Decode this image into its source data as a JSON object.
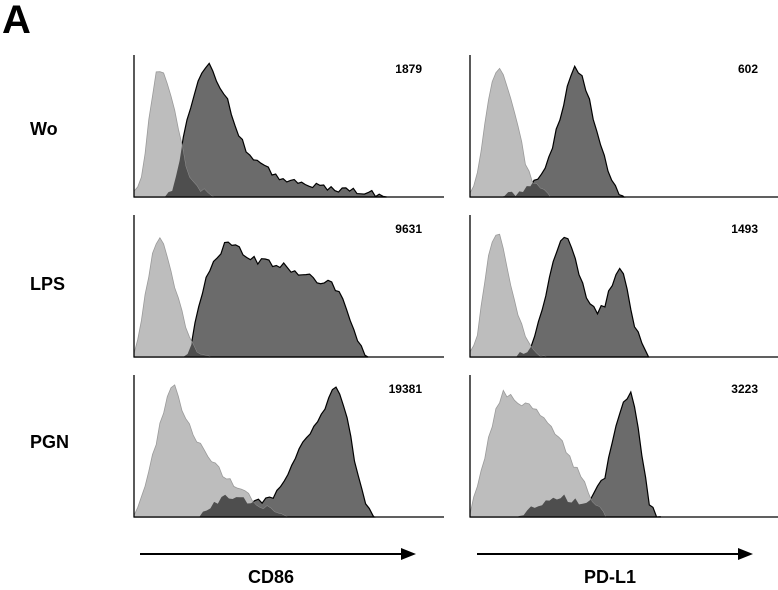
{
  "panel_letter": "A",
  "colors": {
    "control": "#bdbdbd",
    "treated": "#6b6b6b",
    "overlap": "#4e4e4e",
    "outline": "#000000"
  },
  "chart_data": {
    "type": "area",
    "description_free": true,
    "rows": [
      "Wo",
      "LPS",
      "PGN"
    ],
    "columns": [
      "CD86",
      "PD-L1"
    ],
    "grid": false,
    "panels": [
      {
        "row": "Wo",
        "column": "CD86",
        "mfi": "1879",
        "control": [
          [
            0,
            2
          ],
          [
            2,
            8
          ],
          [
            3,
            20
          ],
          [
            5,
            60
          ],
          [
            7,
            85
          ],
          [
            9,
            92
          ],
          [
            11,
            80
          ],
          [
            14,
            55
          ],
          [
            17,
            20
          ],
          [
            20,
            6
          ],
          [
            26,
            0
          ]
        ],
        "treated": [
          [
            10,
            0
          ],
          [
            13,
            8
          ],
          [
            16,
            40
          ],
          [
            19,
            70
          ],
          [
            22,
            88
          ],
          [
            24,
            94
          ],
          [
            27,
            82
          ],
          [
            30,
            70
          ],
          [
            33,
            50
          ],
          [
            36,
            35
          ],
          [
            40,
            24
          ],
          [
            46,
            15
          ],
          [
            55,
            9
          ],
          [
            65,
            6
          ],
          [
            75,
            3
          ],
          [
            82,
            0
          ]
        ]
      },
      {
        "row": "Wo",
        "column": "PD-L1",
        "mfi": "602",
        "control": [
          [
            0,
            2
          ],
          [
            2,
            10
          ],
          [
            4,
            40
          ],
          [
            6,
            70
          ],
          [
            8,
            88
          ],
          [
            10,
            94
          ],
          [
            12,
            80
          ],
          [
            15,
            55
          ],
          [
            18,
            25
          ],
          [
            21,
            8
          ],
          [
            26,
            0
          ]
        ],
        "treated": [
          [
            10,
            0
          ],
          [
            17,
            4
          ],
          [
            22,
            12
          ],
          [
            26,
            30
          ],
          [
            29,
            55
          ],
          [
            32,
            80
          ],
          [
            34,
            92
          ],
          [
            36,
            88
          ],
          [
            39,
            65
          ],
          [
            42,
            40
          ],
          [
            45,
            18
          ],
          [
            48,
            4
          ],
          [
            50,
            0
          ]
        ]
      },
      {
        "row": "LPS",
        "column": "CD86",
        "mfi": "9631",
        "control": [
          [
            0,
            2
          ],
          [
            2,
            20
          ],
          [
            4,
            50
          ],
          [
            6,
            72
          ],
          [
            8,
            85
          ],
          [
            10,
            80
          ],
          [
            12,
            58
          ],
          [
            15,
            35
          ],
          [
            18,
            14
          ],
          [
            20,
            4
          ],
          [
            25,
            0
          ]
        ],
        "treated": [
          [
            15,
            0
          ],
          [
            18,
            5
          ],
          [
            21,
            35
          ],
          [
            24,
            60
          ],
          [
            27,
            68
          ],
          [
            30,
            82
          ],
          [
            33,
            80
          ],
          [
            36,
            72
          ],
          [
            40,
            68
          ],
          [
            45,
            66
          ],
          [
            50,
            63
          ],
          [
            55,
            58
          ],
          [
            60,
            54
          ],
          [
            65,
            50
          ],
          [
            68,
            40
          ],
          [
            71,
            20
          ],
          [
            74,
            5
          ],
          [
            76,
            0
          ]
        ]
      },
      {
        "row": "LPS",
        "column": "PD-L1",
        "mfi": "1493",
        "control": [
          [
            0,
            2
          ],
          [
            2,
            12
          ],
          [
            4,
            40
          ],
          [
            6,
            70
          ],
          [
            8,
            88
          ],
          [
            10,
            85
          ],
          [
            12,
            65
          ],
          [
            15,
            35
          ],
          [
            18,
            12
          ],
          [
            21,
            3
          ],
          [
            25,
            0
          ]
        ],
        "treated": [
          [
            15,
            0
          ],
          [
            20,
            8
          ],
          [
            24,
            38
          ],
          [
            27,
            68
          ],
          [
            30,
            85
          ],
          [
            32,
            82
          ],
          [
            35,
            62
          ],
          [
            38,
            42
          ],
          [
            41,
            30
          ],
          [
            44,
            38
          ],
          [
            47,
            58
          ],
          [
            49,
            62
          ],
          [
            51,
            48
          ],
          [
            53,
            25
          ],
          [
            56,
            8
          ],
          [
            58,
            0
          ]
        ]
      },
      {
        "row": "PGN",
        "column": "CD86",
        "mfi": "19381",
        "control": [
          [
            0,
            2
          ],
          [
            2,
            10
          ],
          [
            5,
            35
          ],
          [
            8,
            60
          ],
          [
            11,
            88
          ],
          [
            13,
            92
          ],
          [
            16,
            75
          ],
          [
            20,
            55
          ],
          [
            25,
            40
          ],
          [
            30,
            28
          ],
          [
            35,
            18
          ],
          [
            40,
            10
          ],
          [
            45,
            4
          ],
          [
            50,
            0
          ]
        ],
        "treated": [
          [
            20,
            0
          ],
          [
            26,
            10
          ],
          [
            30,
            14
          ],
          [
            36,
            12
          ],
          [
            42,
            10
          ],
          [
            48,
            20
          ],
          [
            53,
            45
          ],
          [
            58,
            60
          ],
          [
            62,
            78
          ],
          [
            65,
            90
          ],
          [
            67,
            88
          ],
          [
            70,
            60
          ],
          [
            73,
            25
          ],
          [
            76,
            5
          ],
          [
            78,
            0
          ]
        ]
      },
      {
        "row": "PGN",
        "column": "PD-L1",
        "mfi": "3223",
        "control": [
          [
            0,
            2
          ],
          [
            2,
            20
          ],
          [
            5,
            45
          ],
          [
            8,
            72
          ],
          [
            11,
            88
          ],
          [
            14,
            85
          ],
          [
            17,
            80
          ],
          [
            21,
            75
          ],
          [
            25,
            65
          ],
          [
            29,
            55
          ],
          [
            33,
            40
          ],
          [
            36,
            28
          ],
          [
            39,
            15
          ],
          [
            42,
            5
          ],
          [
            44,
            0
          ]
        ],
        "treated": [
          [
            15,
            0
          ],
          [
            20,
            6
          ],
          [
            25,
            12
          ],
          [
            30,
            14
          ],
          [
            35,
            10
          ],
          [
            40,
            14
          ],
          [
            44,
            30
          ],
          [
            47,
            60
          ],
          [
            50,
            80
          ],
          [
            52,
            90
          ],
          [
            54,
            72
          ],
          [
            56,
            40
          ],
          [
            58,
            12
          ],
          [
            60,
            2
          ],
          [
            62,
            0
          ]
        ]
      }
    ]
  }
}
